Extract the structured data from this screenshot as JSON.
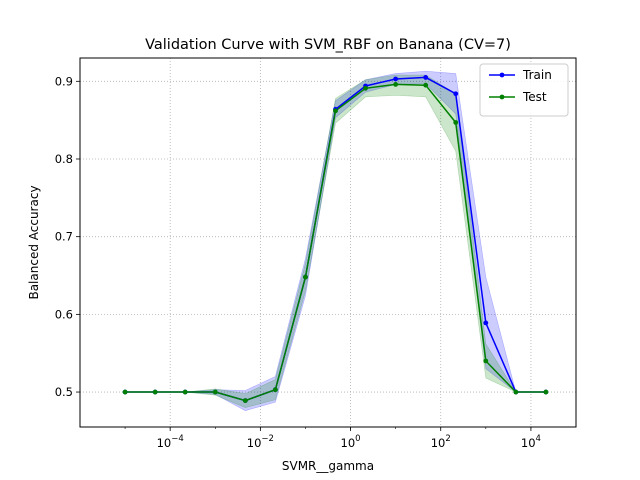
{
  "chart_data": {
    "type": "line",
    "title": "Validation Curve with SVM_RBF on Banana (CV=7)",
    "xlabel": "SVMR__gamma",
    "ylabel": "Balanced Accuracy",
    "xscale": "log",
    "xlim": [
      1e-06,
      100000.0
    ],
    "ylim": [
      0.455,
      0.93
    ],
    "x": [
      1e-05,
      4.64e-05,
      0.000215,
      0.001,
      0.00464,
      0.0215,
      0.1,
      0.464,
      2.15,
      10,
      46.4,
      215,
      1000,
      4640,
      21500
    ],
    "xticks": [
      {
        "value": 0.0001,
        "base": "10",
        "exp": "−4"
      },
      {
        "value": 0.01,
        "base": "10",
        "exp": "−2"
      },
      {
        "value": 1,
        "base": "10",
        "exp": "0"
      },
      {
        "value": 100,
        "base": "10",
        "exp": "2"
      },
      {
        "value": 10000,
        "base": "10",
        "exp": "4"
      }
    ],
    "yticks": [
      {
        "value": 0.5,
        "label": "0.5"
      },
      {
        "value": 0.6,
        "label": "0.6"
      },
      {
        "value": 0.7,
        "label": "0.7"
      },
      {
        "value": 0.8,
        "label": "0.8"
      },
      {
        "value": 0.9,
        "label": "0.9"
      }
    ],
    "grid": true,
    "legend_position": "top-right",
    "series": [
      {
        "name": "Train",
        "color": "#0000ff",
        "values": [
          0.5,
          0.5,
          0.5,
          0.5,
          0.489,
          0.503,
          0.648,
          0.864,
          0.894,
          0.903,
          0.905,
          0.884,
          0.589,
          0.5,
          0.5
        ],
        "band_low": [
          0.5,
          0.5,
          0.5,
          0.497,
          0.476,
          0.487,
          0.624,
          0.853,
          0.886,
          0.896,
          0.897,
          0.858,
          0.53,
          0.5,
          0.5
        ],
        "band_high": [
          0.5,
          0.5,
          0.5,
          0.503,
          0.502,
          0.52,
          0.672,
          0.875,
          0.902,
          0.91,
          0.913,
          0.91,
          0.648,
          0.5,
          0.5
        ]
      },
      {
        "name": "Test",
        "color": "#008000",
        "values": [
          0.5,
          0.5,
          0.5,
          0.5,
          0.489,
          0.503,
          0.648,
          0.862,
          0.891,
          0.896,
          0.895,
          0.847,
          0.54,
          0.5,
          0.5
        ],
        "band_low": [
          0.5,
          0.5,
          0.5,
          0.496,
          0.48,
          0.49,
          0.63,
          0.846,
          0.88,
          0.882,
          0.88,
          0.81,
          0.518,
          0.5,
          0.5
        ],
        "band_high": [
          0.5,
          0.5,
          0.5,
          0.504,
          0.498,
          0.516,
          0.666,
          0.878,
          0.902,
          0.908,
          0.908,
          0.884,
          0.562,
          0.5,
          0.5
        ]
      }
    ]
  }
}
